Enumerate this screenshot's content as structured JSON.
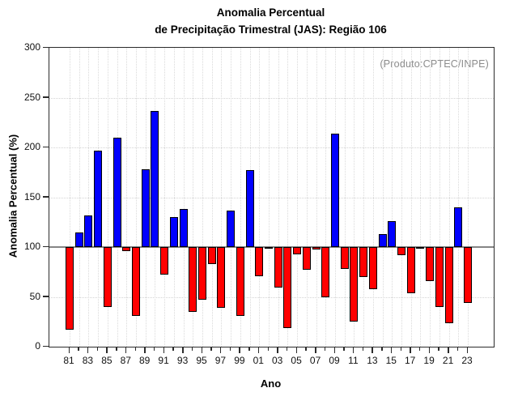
{
  "title": {
    "line1": "Anomalia Percentual",
    "line2": "de Precipitação Trimestral (JAS): Região 106"
  },
  "chart_data": {
    "type": "bar",
    "title_line1": "Anomalia Percentual",
    "title_line2": "de Precipitação Trimestral (JAS): Região 106",
    "annotation": "(Produto:CPTEC/INPE)",
    "xlabel": "Ano",
    "ylabel": "Anomalia Percentual (%)",
    "ylim": [
      0,
      300
    ],
    "yticks": [
      0,
      50,
      100,
      150,
      200,
      250,
      300
    ],
    "ytick_labels": [
      "0",
      "50",
      "100",
      "150",
      "200",
      "250",
      "300"
    ],
    "baseline": 100,
    "grid": "dotted",
    "legend": "none",
    "categories": [
      "81",
      "82",
      "83",
      "84",
      "85",
      "86",
      "87",
      "88",
      "89",
      "90",
      "91",
      "92",
      "93",
      "94",
      "95",
      "96",
      "97",
      "98",
      "99",
      "00",
      "01",
      "02",
      "03",
      "04",
      "05",
      "06",
      "07",
      "08",
      "09",
      "10",
      "11",
      "12",
      "13",
      "14",
      "15",
      "16",
      "17",
      "18",
      "19",
      "20",
      "21",
      "22",
      "23"
    ],
    "labeled_categories": [
      "81",
      "83",
      "85",
      "87",
      "89",
      "91",
      "93",
      "95",
      "97",
      "99",
      "01",
      "03",
      "05",
      "07",
      "09",
      "11",
      "13",
      "15",
      "17",
      "19",
      "21",
      "23"
    ],
    "values": [
      17,
      115,
      132,
      197,
      40,
      210,
      96,
      31,
      178,
      237,
      72,
      130,
      138,
      35,
      47,
      83,
      39,
      137,
      31,
      177,
      71,
      99,
      59,
      19,
      93,
      77,
      98,
      50,
      214,
      78,
      25,
      70,
      58,
      113,
      126,
      92,
      54,
      99,
      66,
      40,
      24,
      140,
      44
    ],
    "color_rule": "bars with value >= 100 are blue (above-normal), bars with value < 100 are red (below-normal), all measured from the 100% baseline",
    "colors": {
      "above_baseline": "#0000ff",
      "below_baseline": "#ff0000",
      "bar_border": "#000000",
      "baseline_line": "#858585",
      "annotation_text": "#8c8c8c",
      "grid": "#d4d4d4"
    }
  }
}
